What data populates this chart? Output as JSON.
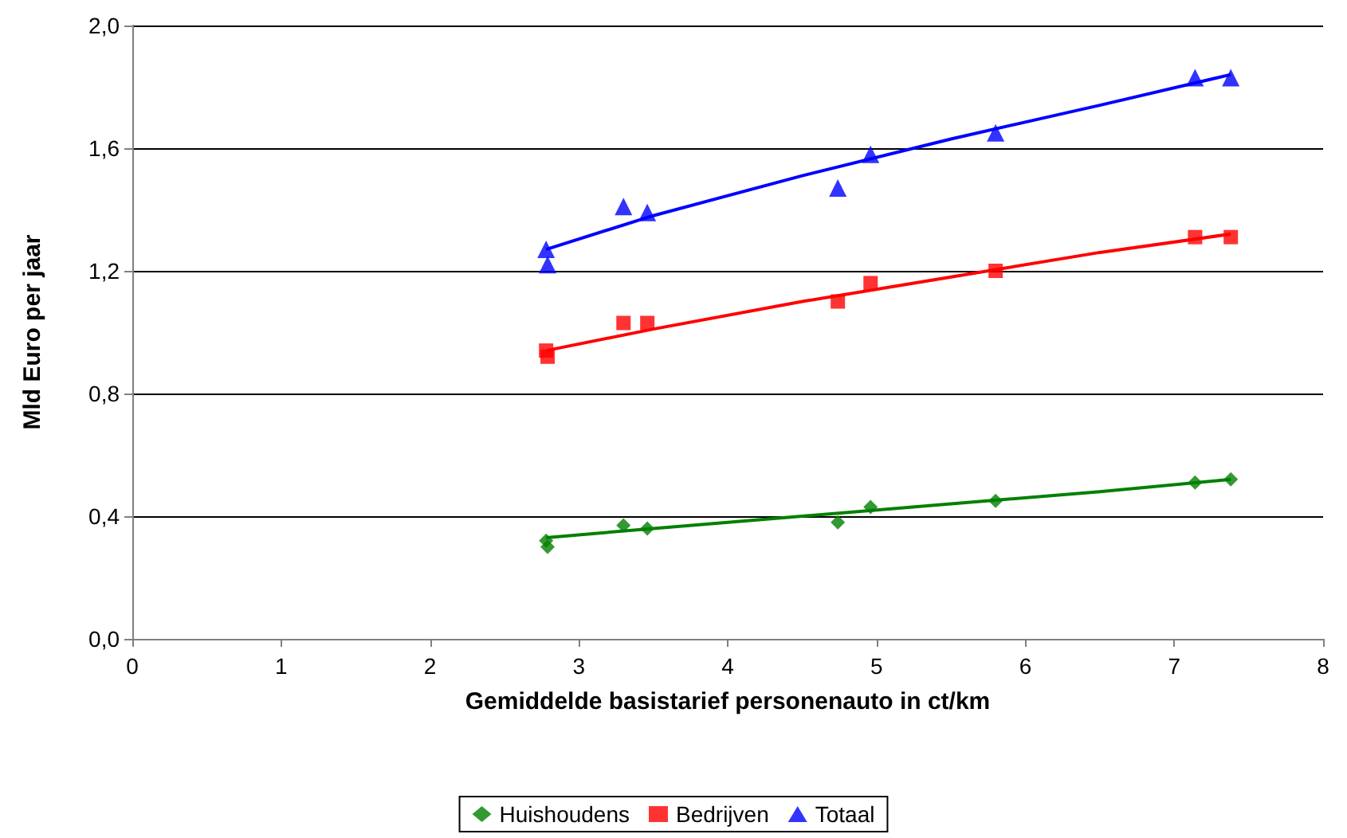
{
  "chart_data": {
    "type": "scatter",
    "xlabel": "Gemiddelde basistarief personenauto in ct/km",
    "ylabel": "Mld Euro per jaar",
    "xlim": [
      0,
      8
    ],
    "xticks": [
      0,
      1,
      2,
      3,
      4,
      5,
      6,
      7,
      8
    ],
    "ylim": [
      0,
      2
    ],
    "yticks": [
      {
        "value": 0,
        "label": "0,0"
      },
      {
        "value": 0.4,
        "label": "0,4"
      },
      {
        "value": 0.8,
        "label": "0,8"
      },
      {
        "value": 1.2,
        "label": "1,2"
      },
      {
        "value": 1.6,
        "label": "1,6"
      },
      {
        "value": 2,
        "label": "2,0"
      }
    ],
    "grid": "y",
    "legend": "bottom",
    "series": [
      {
        "name": "Huishoudens",
        "color": "#008000",
        "marker": "diamond",
        "x": [
          2.78,
          2.79,
          3.3,
          3.46,
          4.74,
          4.96,
          5.8,
          7.14,
          7.38
        ],
        "values": [
          0.32,
          0.3,
          0.37,
          0.36,
          0.38,
          0.43,
          0.45,
          0.51,
          0.52
        ]
      },
      {
        "name": "Bedrijven",
        "color": "#ff0000",
        "marker": "square",
        "x": [
          2.78,
          2.79,
          3.3,
          3.46,
          4.74,
          4.96,
          5.8,
          7.14,
          7.38
        ],
        "values": [
          0.94,
          0.92,
          1.03,
          1.03,
          1.1,
          1.16,
          1.2,
          1.31,
          1.31
        ]
      },
      {
        "name": "Totaal",
        "color": "#0000ff",
        "marker": "triangle",
        "x": [
          2.78,
          2.79,
          3.3,
          3.46,
          4.74,
          4.96,
          5.8,
          7.14,
          7.38
        ],
        "values": [
          1.27,
          1.22,
          1.41,
          1.39,
          1.47,
          1.58,
          1.65,
          1.83,
          1.83
        ]
      },
      {
        "type": "line",
        "color": "#008000",
        "x": [
          2.78,
          3.5,
          4.5,
          5.5,
          6.5,
          7.38
        ],
        "values": [
          0.33,
          0.36,
          0.4,
          0.44,
          0.48,
          0.52
        ]
      },
      {
        "type": "line",
        "color": "#ff0000",
        "x": [
          2.78,
          3.5,
          4.5,
          5.5,
          6.5,
          7.38
        ],
        "values": [
          0.94,
          1.01,
          1.1,
          1.18,
          1.26,
          1.32
        ]
      },
      {
        "type": "line",
        "color": "#0000ff",
        "x": [
          2.78,
          3.5,
          4.5,
          5.5,
          6.5,
          7.38
        ],
        "values": [
          1.27,
          1.38,
          1.51,
          1.63,
          1.74,
          1.84
        ]
      }
    ]
  }
}
